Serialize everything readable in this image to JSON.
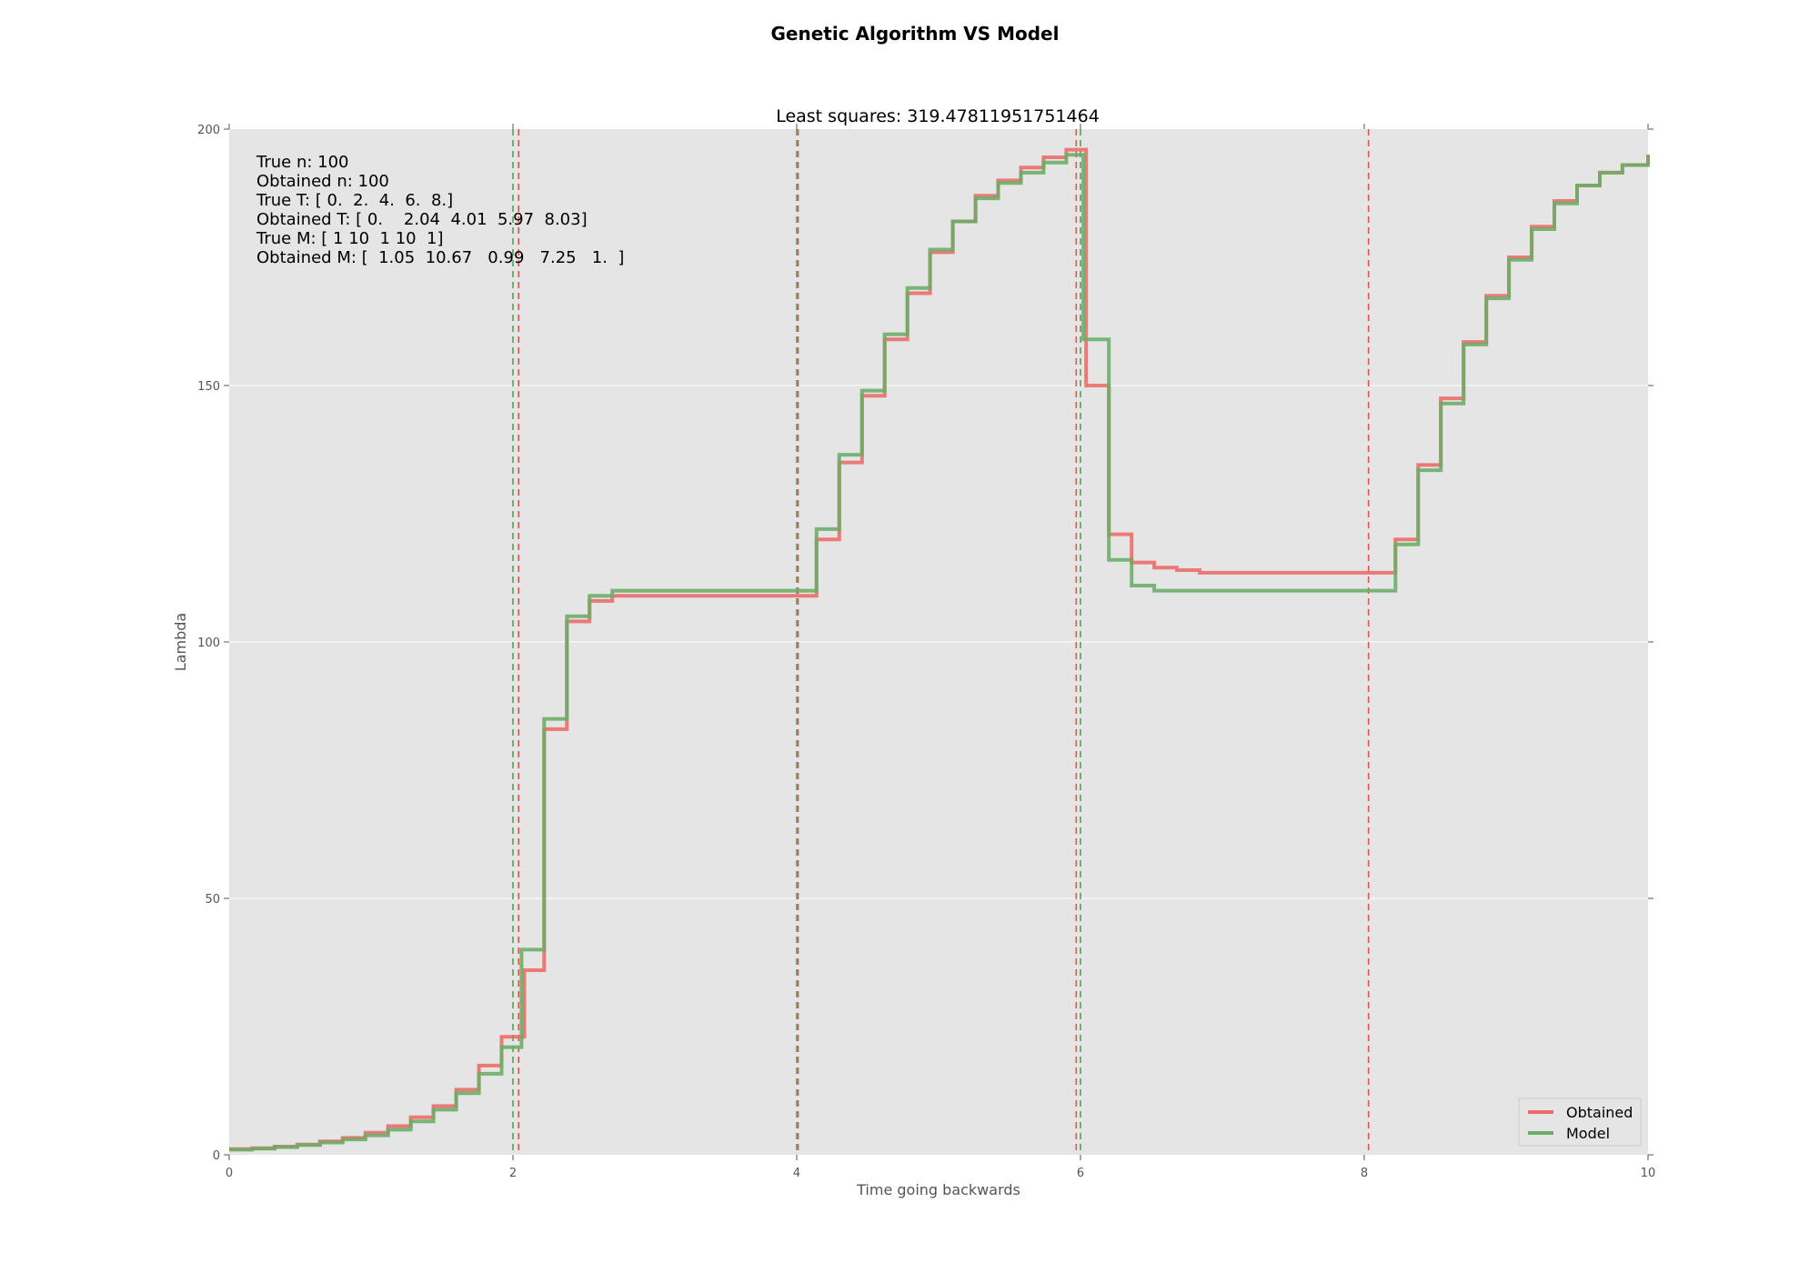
{
  "figure_title": "Genetic Algorithm VS Model",
  "chart_data": {
    "type": "line",
    "drawstyle": "step",
    "title": "Least squares: 319.47811951751464",
    "xlabel": "Time going backwards",
    "ylabel": "Lambda",
    "xlim": [
      0,
      10
    ],
    "ylim": [
      0,
      200
    ],
    "xticks": [
      0,
      2,
      4,
      6,
      8,
      10
    ],
    "yticks": [
      0,
      50,
      100,
      150,
      200
    ],
    "xtick_labels": [
      "0",
      "2",
      "4",
      "6",
      "8",
      "10"
    ],
    "ytick_labels": [
      "0",
      "50",
      "100",
      "150",
      "200"
    ],
    "grid": true,
    "background": "#e5e5e5",
    "legend_position": "lower right",
    "annotation_lines": [
      "True n: 100",
      "Obtained n: 100",
      "True T: [ 0.  2.  4.  6.  8.]",
      "Obtained T: [ 0.    2.04  4.01  5.97  8.03]",
      "True M: [ 1 10  1 10  1]",
      "Obtained M: [  1.05  10.67   0.99   7.25   1.  ]"
    ],
    "vlines": [
      {
        "x": 2.0,
        "color": "#5a9e57"
      },
      {
        "x": 2.04,
        "color": "#e0554d"
      },
      {
        "x": 4.0,
        "color": "#5a9e57"
      },
      {
        "x": 4.01,
        "color": "#e0554d"
      },
      {
        "x": 5.97,
        "color": "#e0554d"
      },
      {
        "x": 6.0,
        "color": "#5a9e57"
      },
      {
        "x": 8.03,
        "color": "#e0554d"
      }
    ],
    "series": [
      {
        "name": "Obtained",
        "color": "#ec6b67",
        "x": [
          0,
          0.16,
          0.32,
          0.48,
          0.64,
          0.8,
          0.96,
          1.12,
          1.28,
          1.44,
          1.6,
          1.76,
          1.92,
          2.08,
          2.22,
          2.38,
          2.54,
          2.7,
          2.86,
          3.02,
          3.5,
          4.0,
          4.14,
          4.3,
          4.46,
          4.62,
          4.78,
          4.94,
          5.1,
          5.26,
          5.42,
          5.58,
          5.74,
          5.9,
          6.04,
          6.2,
          6.36,
          6.52,
          6.68,
          6.84,
          7.5,
          8.03,
          8.22,
          8.38,
          8.54,
          8.7,
          8.86,
          9.02,
          9.18,
          9.34,
          9.5,
          9.66,
          9.82,
          10
        ],
        "y": [
          1.1,
          1.3,
          1.6,
          2.0,
          2.6,
          3.3,
          4.3,
          5.6,
          7.3,
          9.5,
          12.7,
          17.4,
          23.0,
          36.0,
          83.0,
          104.0,
          108.0,
          109.0,
          109.0,
          109.0,
          109.0,
          109.0,
          120.0,
          135.0,
          148.0,
          159.0,
          168.0,
          176.0,
          182.0,
          187.0,
          190.0,
          192.5,
          194.5,
          196.0,
          150.0,
          121.0,
          115.5,
          114.5,
          114.0,
          113.5,
          113.5,
          113.5,
          120.0,
          134.5,
          147.5,
          158.5,
          167.5,
          175.0,
          181.0,
          186.0,
          189.0,
          191.5,
          193.0,
          195.0
        ]
      },
      {
        "name": "Model",
        "color": "#6aad67",
        "x": [
          0,
          0.16,
          0.32,
          0.48,
          0.64,
          0.8,
          0.96,
          1.12,
          1.28,
          1.44,
          1.6,
          1.76,
          1.92,
          2.06,
          2.22,
          2.38,
          2.54,
          2.7,
          2.86,
          3.02,
          3.5,
          4.0,
          4.14,
          4.3,
          4.46,
          4.62,
          4.78,
          4.94,
          5.1,
          5.26,
          5.42,
          5.58,
          5.74,
          5.9,
          6.02,
          6.2,
          6.36,
          6.52,
          6.68,
          6.84,
          7.5,
          8.1,
          8.22,
          8.38,
          8.54,
          8.7,
          8.86,
          9.02,
          9.18,
          9.34,
          9.5,
          9.66,
          9.82,
          10
        ],
        "y": [
          1.0,
          1.2,
          1.5,
          1.9,
          2.4,
          3.0,
          3.8,
          4.9,
          6.5,
          8.8,
          12.0,
          15.8,
          21.0,
          40.0,
          85.0,
          105.0,
          109.0,
          110.0,
          110.0,
          110.0,
          110.0,
          110.0,
          122.0,
          136.5,
          149.0,
          160.0,
          169.0,
          176.5,
          182.0,
          186.5,
          189.5,
          191.5,
          193.5,
          195.0,
          159.0,
          116.0,
          111.0,
          110.0,
          110.0,
          110.0,
          110.0,
          110.0,
          119.0,
          133.5,
          146.5,
          158.0,
          167.0,
          174.5,
          180.5,
          185.5,
          189.0,
          191.5,
          193.0,
          195.0
        ]
      }
    ]
  }
}
